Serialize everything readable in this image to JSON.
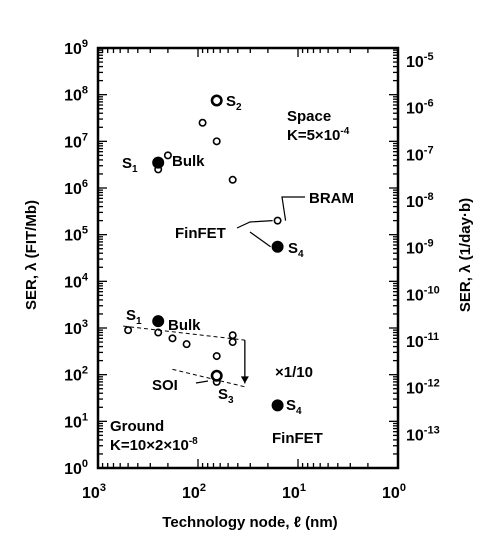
{
  "chart_data": {
    "type": "scatter",
    "xlabel": "Technology node, ℓ (nm)",
    "ylabel": "SER, λ (FIT/Mb)",
    "y2label": "SER, λ (1/day·b)",
    "x_scale": "log",
    "x_reversed": true,
    "xlim": [
      1000,
      1
    ],
    "y_scale": "log",
    "ylim": [
      1,
      1000000000
    ],
    "grid": false,
    "x_tick_labels": [
      {
        "base": "10",
        "exp": "3"
      },
      {
        "base": "10",
        "exp": "2"
      },
      {
        "base": "10",
        "exp": "1"
      },
      {
        "base": "10",
        "exp": "0"
      }
    ],
    "y_tick_labels": [
      {
        "base": "10",
        "exp": "0"
      },
      {
        "base": "10",
        "exp": "1"
      },
      {
        "base": "10",
        "exp": "2"
      },
      {
        "base": "10",
        "exp": "3"
      },
      {
        "base": "10",
        "exp": "4"
      },
      {
        "base": "10",
        "exp": "5"
      },
      {
        "base": "10",
        "exp": "6"
      },
      {
        "base": "10",
        "exp": "7"
      },
      {
        "base": "10",
        "exp": "8"
      },
      {
        "base": "10",
        "exp": "9"
      }
    ],
    "y2_tick_labels": [
      {
        "base": "10",
        "exp": "-13"
      },
      {
        "base": "10",
        "exp": "-12"
      },
      {
        "base": "10",
        "exp": "-11"
      },
      {
        "base": "10",
        "exp": "-10"
      },
      {
        "base": "10",
        "exp": "-9"
      },
      {
        "base": "10",
        "exp": "-8"
      },
      {
        "base": "10",
        "exp": "-7"
      },
      {
        "base": "10",
        "exp": "-6"
      },
      {
        "base": "10",
        "exp": "-5"
      }
    ],
    "series": [
      {
        "name": "Space",
        "marker": "open-circle",
        "points": [
          [
            200,
            5000000
          ],
          [
            65,
            70000000
          ],
          [
            90,
            25000000
          ],
          [
            65,
            10000000
          ],
          [
            45,
            1500000
          ],
          [
            16,
            200000
          ],
          [
            250,
            2500000
          ]
        ]
      },
      {
        "name": "Space",
        "marker": "filled-circle",
        "points": [
          [
            250,
            3500000
          ],
          [
            65,
            75000000
          ],
          [
            16,
            55000
          ]
        ]
      },
      {
        "name": "Space",
        "marker": "double-circle",
        "points": [
          [
            65,
            75000000
          ]
        ]
      },
      {
        "name": "Ground",
        "marker": "open-circle",
        "points": [
          [
            500,
            900
          ],
          [
            250,
            800
          ],
          [
            180,
            600
          ],
          [
            130,
            450
          ],
          [
            45,
            700
          ],
          [
            45,
            500
          ],
          [
            65,
            250
          ],
          [
            65,
            70
          ]
        ]
      },
      {
        "name": "Ground",
        "marker": "filled-circle",
        "points": [
          [
            250,
            1400
          ],
          [
            65,
            95
          ],
          [
            16,
            22
          ]
        ]
      },
      {
        "name": "Ground",
        "marker": "double-circle",
        "points": [
          [
            65,
            95
          ]
        ]
      }
    ],
    "annotations": {
      "space": "Space",
      "k_space": "K=5×10",
      "k_space_exp": "-4",
      "s1_top": "S",
      "s1_top_sub": "1",
      "bulk_top": "Bulk",
      "s2": "S",
      "s2_sub": "2",
      "bram": "BRAM",
      "finfet_top": "FinFET",
      "s4_top": "S",
      "s4_top_sub": "4",
      "s1_bottom": "S",
      "s1_bottom_sub": "1",
      "bulk_bottom": "Bulk",
      "reduction": "×1/10",
      "soi": "SOI",
      "s3": "S",
      "s3_sub": "3",
      "s4_bottom": "S",
      "s4_bottom_sub": "4",
      "ground": "Ground",
      "k_ground": "K=10×2×10",
      "k_ground_exp": "-8",
      "finfet_bottom": "FinFET"
    }
  }
}
